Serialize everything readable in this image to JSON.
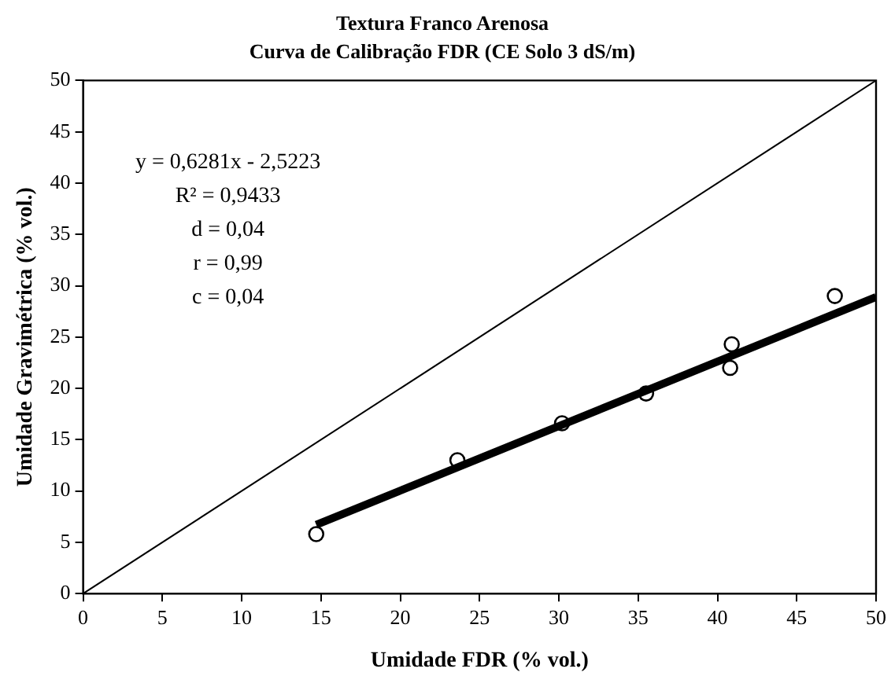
{
  "chart_data": {
    "type": "scatter",
    "title": "Textura Franco Arenosa",
    "subtitle": "Curva de Calibração FDR (CE Solo 3 dS/m)",
    "xlabel": "Umidade FDR (% vol.)",
    "ylabel": "Umidade Gravimétrica (% vol.)",
    "series": [
      {
        "type": "scatter",
        "color": "#000000",
        "marker": "circle",
        "x": [
          14.7,
          23.6,
          30.2,
          35.5,
          40.8,
          40.9,
          47.4
        ],
        "values": [
          5.8,
          13.0,
          16.6,
          19.5,
          22.0,
          24.3,
          29.0
        ]
      },
      {
        "type": "line",
        "color": "#000000",
        "marker": "none",
        "x": [
          14.7,
          50
        ],
        "values": [
          6.7,
          28.9
        ]
      },
      {
        "type": "line",
        "color": "#000000",
        "marker": "none",
        "x": [
          0,
          50
        ],
        "values": [
          0,
          50
        ]
      }
    ],
    "annotations": [
      "y = 0,6281x - 2,5223",
      "R² = 0,9433",
      "d = 0,04",
      "r = 0,99",
      "c = 0,04"
    ],
    "xlim": [
      0,
      50
    ],
    "xticks": [
      0,
      5,
      10,
      15,
      20,
      25,
      30,
      35,
      40,
      45,
      50
    ],
    "ylim": [
      0,
      50
    ],
    "yticks": [
      0,
      5,
      10,
      15,
      20,
      25,
      30,
      35,
      40,
      45,
      50
    ],
    "grid": false,
    "legend": false
  }
}
